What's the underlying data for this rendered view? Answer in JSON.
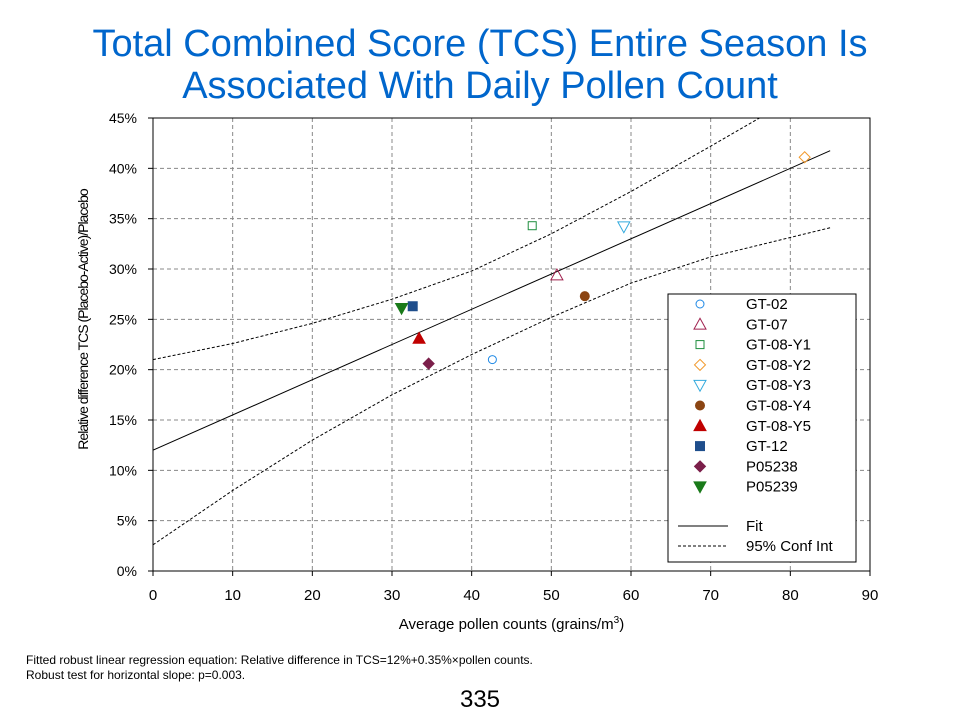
{
  "slide": {
    "title_line1": "Total Combined Score (TCS) Entire Season Is",
    "title_line2": "Associated With Daily Pollen Count",
    "footnote_line1": "Fitted robust linear regression equation: Relative difference  in TCS=12%+0.35%×pollen counts.",
    "footnote_line2": "Robust test for horizontal slope: p=0.003.",
    "page_number": "335",
    "title_color": "#0066CC"
  },
  "chart_data": {
    "type": "scatter",
    "xlabel": "Average pollen counts (grains/m",
    "xlabel_superscript": "3",
    "xlabel_suffix": ")",
    "ylabel": "Relative difference TCS (Placebo-Active)/Placebo",
    "xlim": [
      0,
      90
    ],
    "ylim": [
      0,
      45
    ],
    "x_ticks": [
      0,
      10,
      20,
      30,
      40,
      50,
      60,
      70,
      80,
      90
    ],
    "x_tick_labels": [
      "0",
      "10",
      "20",
      "30",
      "40",
      "50",
      "60",
      "70",
      "80",
      "90"
    ],
    "y_ticks": [
      0,
      5,
      10,
      15,
      20,
      25,
      30,
      35,
      40,
      45
    ],
    "y_tick_labels": [
      "0%",
      "5%",
      "10%",
      "15%",
      "20%",
      "25%",
      "30%",
      "35%",
      "40%",
      "45%"
    ],
    "grid": true,
    "legend_position": "right",
    "series": [
      {
        "name": "GT-02",
        "x": 42.6,
        "y": 21.0,
        "marker": "circle-open",
        "color": "#1E88E5"
      },
      {
        "name": "GT-07",
        "x": 50.7,
        "y": 29.4,
        "marker": "triangle-up-open",
        "color": "#A0224F"
      },
      {
        "name": "GT-08-Y1",
        "x": 47.6,
        "y": 34.3,
        "marker": "square-open",
        "color": "#1E8E3E"
      },
      {
        "name": "GT-08-Y2",
        "x": 81.8,
        "y": 41.1,
        "marker": "diamond-open",
        "color": "#F29A2E"
      },
      {
        "name": "GT-08-Y3",
        "x": 59.1,
        "y": 34.2,
        "marker": "triangle-down-open",
        "color": "#33AADD"
      },
      {
        "name": "GT-08-Y4",
        "x": 54.2,
        "y": 27.3,
        "marker": "circle-filled",
        "color": "#8B4513"
      },
      {
        "name": "GT-08-Y5",
        "x": 33.4,
        "y": 23.1,
        "marker": "triangle-up-filled",
        "color": "#C00000"
      },
      {
        "name": "GT-12",
        "x": 32.6,
        "y": 26.3,
        "marker": "square-filled",
        "color": "#1F4E8C"
      },
      {
        "name": "P05238",
        "x": 34.6,
        "y": 20.6,
        "marker": "diamond-filled",
        "color": "#7B1F4A"
      },
      {
        "name": "P05239",
        "x": 31.2,
        "y": 26.1,
        "marker": "triangle-down-filled",
        "color": "#1A7A1A"
      }
    ],
    "fit": {
      "name": "Fit",
      "intercept": 12,
      "slope": 0.35,
      "x_range": [
        0,
        85
      ]
    },
    "conf_int": {
      "name": "95% Conf Int",
      "upper": [
        [
          0,
          21.0
        ],
        [
          10,
          22.6
        ],
        [
          20,
          24.6
        ],
        [
          30,
          27.0
        ],
        [
          40,
          29.8
        ],
        [
          50,
          33.5
        ],
        [
          60,
          37.7
        ],
        [
          70,
          42.2
        ],
        [
          77,
          45.4
        ]
      ],
      "lower": [
        [
          0,
          2.6
        ],
        [
          10,
          8.0
        ],
        [
          20,
          13.0
        ],
        [
          30,
          17.5
        ],
        [
          40,
          21.5
        ],
        [
          50,
          25.2
        ],
        [
          60,
          28.6
        ],
        [
          70,
          31.2
        ],
        [
          85,
          34.1
        ]
      ]
    }
  }
}
